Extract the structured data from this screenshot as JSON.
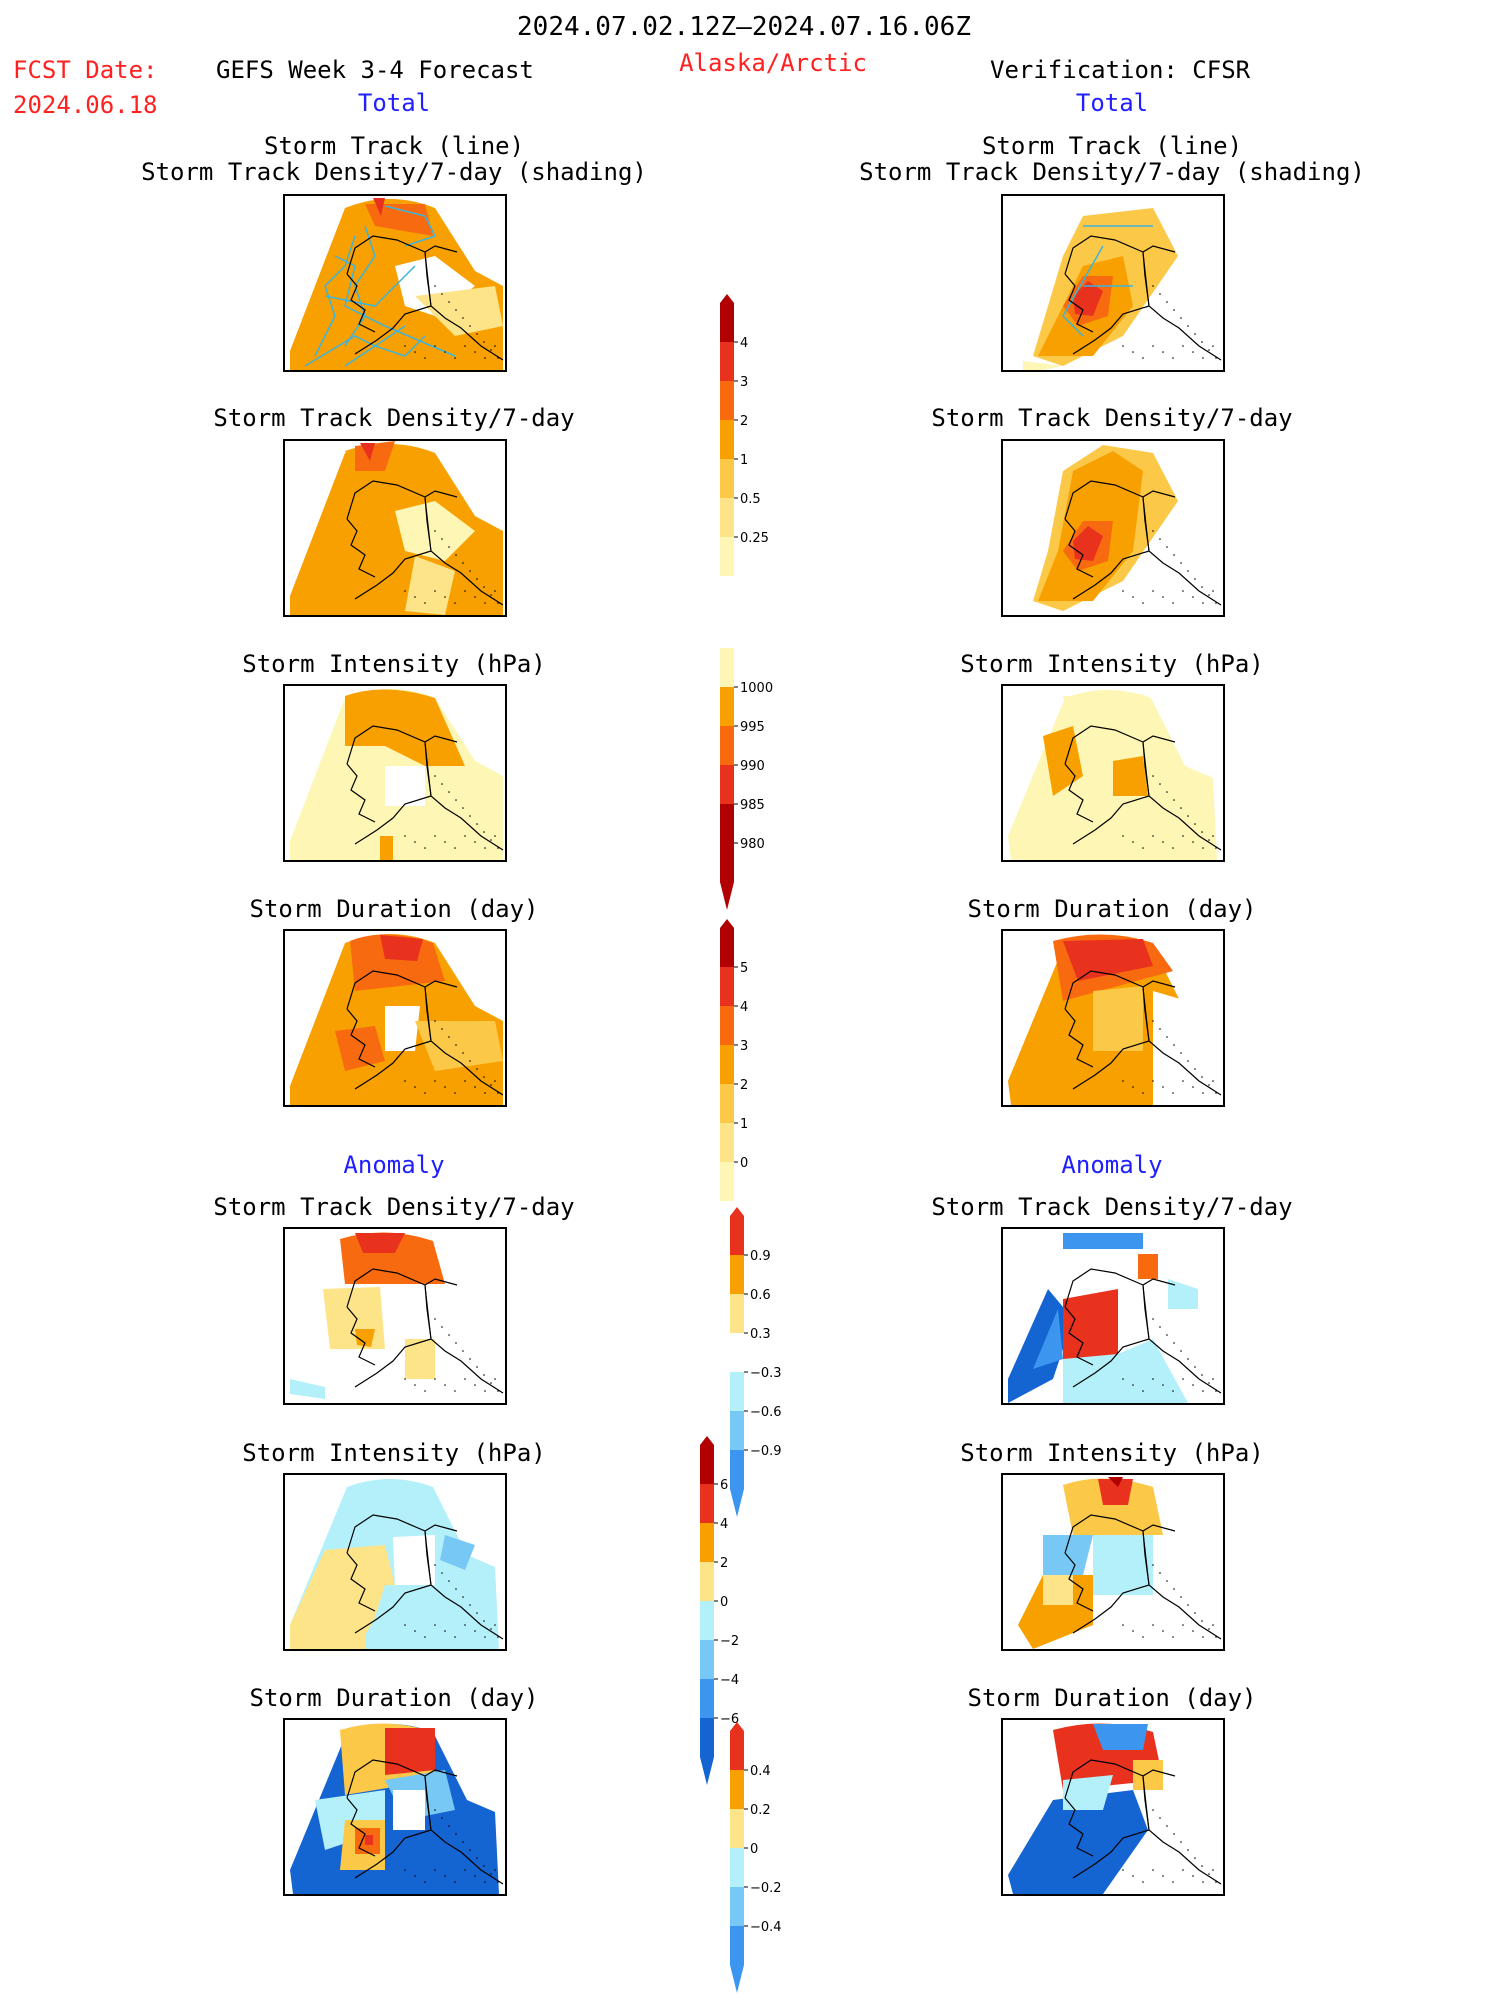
{
  "header": {
    "date_range": "2024.07.02.12Z–2024.07.16.06Z",
    "fcst_label": "FCST Date:",
    "fcst_date": "2024.06.18",
    "forecast_title": "GEFS Week 3-4 Forecast",
    "region": "Alaska/Arctic",
    "verification_title": "Verification: CFSR"
  },
  "columns": {
    "left_total_label": "Total",
    "right_total_label": "Total",
    "left_anomaly_label": "Anomaly",
    "right_anomaly_label": "Anomaly"
  },
  "panels": {
    "storm_track_line": "Storm Track (line)",
    "storm_track_shading": "Storm Track Density/7-day (shading)",
    "storm_track_density": "Storm Track Density/7-day",
    "storm_intensity": "Storm Intensity (hPa)",
    "storm_duration": "Storm Duration (day)"
  },
  "colorbars": {
    "density_total": [
      "4",
      "3",
      "2",
      "1",
      "0.5",
      "0.25"
    ],
    "intensity_total": [
      "1000",
      "995",
      "990",
      "985",
      "980"
    ],
    "duration_total": [
      "5",
      "4",
      "3",
      "2",
      "1",
      "0"
    ],
    "density_anomaly": [
      "0.9",
      "0.6",
      "0.3",
      "−0.3",
      "−0.6",
      "−0.9"
    ],
    "intensity_anomaly": [
      "6",
      "4",
      "2",
      "0",
      "−2",
      "−4",
      "−6"
    ],
    "duration_anomaly": [
      "0.4",
      "0.2",
      "0",
      "−0.2",
      "−0.4"
    ]
  },
  "palette": {
    "dark_red": "#b00000",
    "red": "#e8321e",
    "orange_red": "#f86a10",
    "orange": "#f8a000",
    "light_orange": "#fcc848",
    "yellow": "#fde488",
    "pale_yellow": "#fef6b4",
    "light_blue": "#b4f0fa",
    "mid_blue": "#78c8f5",
    "blue": "#3c96f0",
    "dark_blue": "#1464d2",
    "track_line": "#3cb4dc"
  }
}
